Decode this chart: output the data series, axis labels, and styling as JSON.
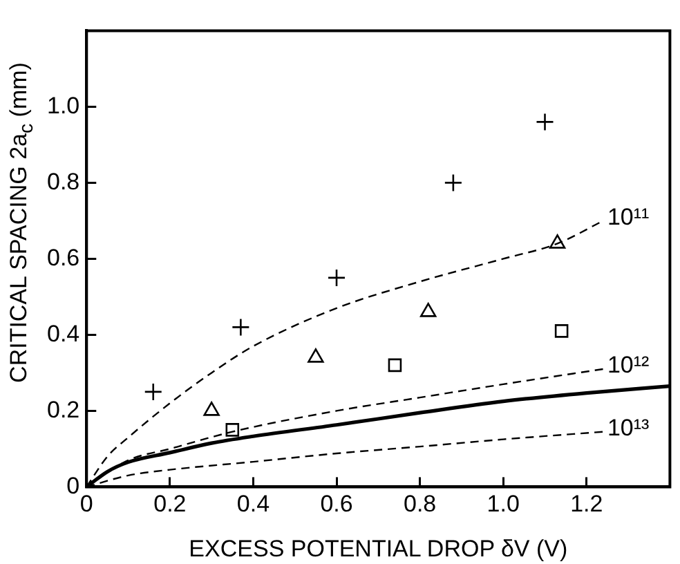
{
  "chart_data": {
    "type": "scatter",
    "xlabel": "EXCESS POTENTIAL DROP δV (V)",
    "ylabel": "CRITICAL SPACING 2a$_{c}$ (mm)",
    "xlim": [
      0,
      1.4
    ],
    "ylim": [
      0,
      1.2
    ],
    "xticks": [
      0,
      0.2,
      0.4,
      0.6,
      0.8,
      {
        "value": 1,
        "label": "1.0"
      },
      1.2
    ],
    "yticks": [
      0,
      0.2,
      0.4,
      0.6,
      0.8,
      {
        "value": 1,
        "label": "1.0"
      }
    ],
    "grid": false,
    "legend": false,
    "series": [
      {
        "marker": "cross",
        "color": "#000000",
        "x": [
          0.16,
          0.37,
          0.6,
          0.88,
          1.1
        ],
        "values": [
          0.25,
          0.42,
          0.55,
          0.8,
          0.96
        ]
      },
      {
        "marker": "triangle",
        "color": "#000000",
        "x": [
          0.3,
          0.55,
          0.82,
          1.13
        ],
        "values": [
          0.2,
          0.34,
          0.46,
          0.64
        ]
      },
      {
        "marker": "square",
        "color": "#000000",
        "x": [
          0.35,
          0.74,
          1.14
        ],
        "values": [
          0.15,
          0.32,
          0.41
        ]
      },
      {
        "type": "line",
        "name": "10¹¹",
        "line_style": "dashed",
        "marker": "none",
        "color": "#000000",
        "x": [
          0,
          0.05,
          0.1,
          0.2,
          0.3,
          0.4,
          0.6,
          0.8,
          1.0,
          1.13,
          1.24
        ],
        "values": [
          0,
          0.08,
          0.13,
          0.22,
          0.3,
          0.37,
          0.47,
          0.54,
          0.6,
          0.64,
          0.7
        ]
      },
      {
        "type": "line",
        "name": "10¹²",
        "line_style": "dashed",
        "marker": "none",
        "color": "#000000",
        "x": [
          0,
          0.1,
          0.2,
          0.35,
          0.6,
          0.8,
          1.0,
          1.24
        ],
        "values": [
          0,
          0.07,
          0.1,
          0.145,
          0.2,
          0.235,
          0.27,
          0.31
        ]
      },
      {
        "type": "line",
        "line_style": "solid",
        "marker": "none",
        "color": "#000000",
        "x": [
          0,
          0.05,
          0.1,
          0.2,
          0.3,
          0.4,
          0.6,
          0.8,
          1.0,
          1.2,
          1.4
        ],
        "values": [
          0,
          0.04,
          0.065,
          0.09,
          0.115,
          0.133,
          0.163,
          0.195,
          0.225,
          0.247,
          0.265
        ]
      },
      {
        "type": "line",
        "name": "10¹³",
        "line_style": "dashed",
        "marker": "none",
        "color": "#000000",
        "x": [
          0,
          0.1,
          0.2,
          0.4,
          0.6,
          0.8,
          1.0,
          1.24
        ],
        "values": [
          0,
          0.03,
          0.045,
          0.066,
          0.088,
          0.106,
          0.125,
          0.145
        ]
      }
    ]
  }
}
